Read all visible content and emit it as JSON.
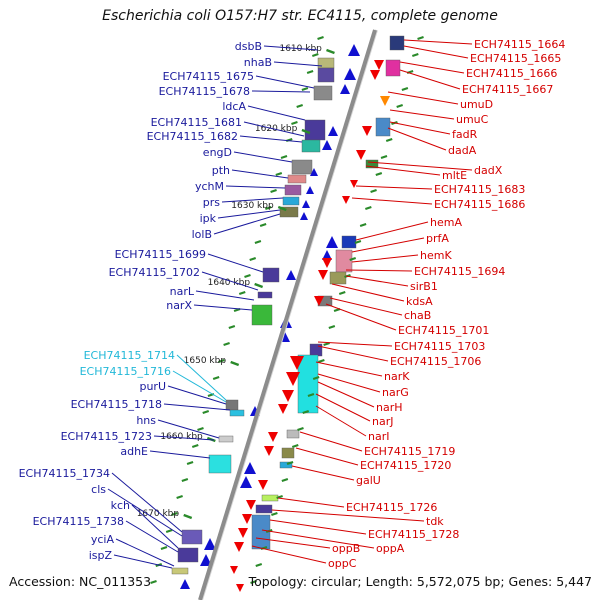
{
  "title": "Escherichia coli O157:H7 str. EC4115, complete genome",
  "footer": {
    "accession": "Accession: NC_011353",
    "topology": "Topology: circular; Length: 5,572,075 bp; Genes: 5,447"
  },
  "colors": {
    "left_label": "#1a1a9c",
    "left_label_light": "#22b8d8",
    "right_label": "#d40000",
    "backbone": "#8c8c8c",
    "tick": "#2a8a2a"
  },
  "kbp_ticks": [
    {
      "text": "1610 kbp"
    },
    {
      "text": "1620 kbp"
    },
    {
      "text": "1630 kbp"
    },
    {
      "text": "1640 kbp"
    },
    {
      "text": "1650 kbp"
    },
    {
      "text": "1660 kbp"
    },
    {
      "text": "1670 kbp"
    }
  ],
  "left_genes": [
    {
      "label": "dsbB",
      "light": false
    },
    {
      "label": "nhaB",
      "light": false
    },
    {
      "label": "ECH74115_1675",
      "light": false
    },
    {
      "label": "ECH74115_1678",
      "light": false
    },
    {
      "label": "ldcA",
      "light": false
    },
    {
      "label": "ECH74115_1681",
      "light": false
    },
    {
      "label": "ECH74115_1682",
      "light": false
    },
    {
      "label": "engD",
      "light": false
    },
    {
      "label": "pth",
      "light": false
    },
    {
      "label": "ychM",
      "light": false
    },
    {
      "label": "prs",
      "light": false
    },
    {
      "label": "ipk",
      "light": false
    },
    {
      "label": "lolB",
      "light": false
    },
    {
      "label": "ECH74115_1699",
      "light": false
    },
    {
      "label": "ECH74115_1702",
      "light": false
    },
    {
      "label": "narL",
      "light": false
    },
    {
      "label": "narX",
      "light": false
    },
    {
      "label": "ECH74115_1714",
      "light": true
    },
    {
      "label": "ECH74115_1716",
      "light": true
    },
    {
      "label": "purU",
      "light": false
    },
    {
      "label": "ECH74115_1718",
      "light": false
    },
    {
      "label": "hns",
      "light": false
    },
    {
      "label": "ECH74115_1723",
      "light": false
    },
    {
      "label": "adhE",
      "light": false
    },
    {
      "label": "ECH74115_1734",
      "light": false
    },
    {
      "label": "cls",
      "light": false
    },
    {
      "label": "kch",
      "light": false
    },
    {
      "label": "ECH74115_1738",
      "light": false
    },
    {
      "label": "yciA",
      "light": false
    },
    {
      "label": "ispZ",
      "light": false
    }
  ],
  "right_genes": [
    {
      "label": "ECH74115_1664"
    },
    {
      "label": "ECH74115_1665"
    },
    {
      "label": "ECH74115_1666"
    },
    {
      "label": "ECH74115_1667"
    },
    {
      "label": "umuD"
    },
    {
      "label": "umuC"
    },
    {
      "label": "fadR"
    },
    {
      "label": "dadA"
    },
    {
      "label": "dadX"
    },
    {
      "label": "mltE"
    },
    {
      "label": "ECH74115_1683"
    },
    {
      "label": "ECH74115_1686"
    },
    {
      "label": "hemA"
    },
    {
      "label": "prfA"
    },
    {
      "label": "hemK"
    },
    {
      "label": "ECH74115_1694"
    },
    {
      "label": "sirB1"
    },
    {
      "label": "kdsA"
    },
    {
      "label": "chaB"
    },
    {
      "label": "ECH74115_1701"
    },
    {
      "label": "ECH74115_1703"
    },
    {
      "label": "ECH74115_1706"
    },
    {
      "label": "narK"
    },
    {
      "label": "narG"
    },
    {
      "label": "narH"
    },
    {
      "label": "narJ"
    },
    {
      "label": "narI"
    },
    {
      "label": "ECH74115_1719"
    },
    {
      "label": "ECH74115_1720"
    },
    {
      "label": "galU"
    },
    {
      "label": "ECH74115_1726"
    },
    {
      "label": "tdk"
    },
    {
      "label": "ECH74115_1728"
    },
    {
      "label": "oppA"
    },
    {
      "label": "oppB"
    },
    {
      "label": "oppC"
    }
  ]
}
